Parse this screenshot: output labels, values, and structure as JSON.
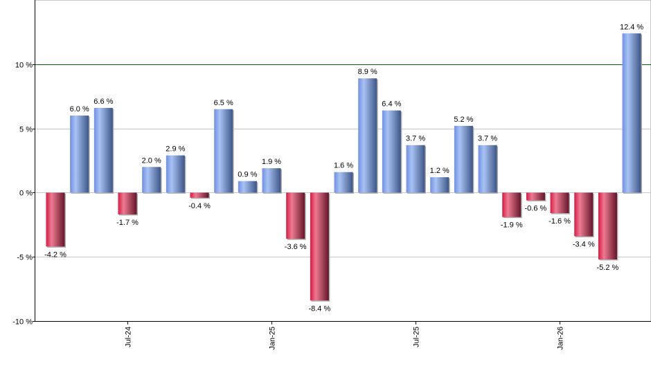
{
  "chart_data": {
    "type": "bar",
    "title": "",
    "xlabel": "",
    "ylabel": "",
    "ylim": [
      -10,
      15
    ],
    "yticks": [
      -10,
      -5,
      0,
      5,
      10
    ],
    "ytick_suffix": " %",
    "grid": true,
    "highlight_line": {
      "value": 10,
      "color": "#006400"
    },
    "categories": [
      "Apr-24",
      "May-24",
      "Jun-24",
      "Jul-24",
      "Aug-24",
      "Sep-24",
      "Oct-24",
      "Nov-24",
      "Dec-24",
      "Jan-25",
      "Feb-25",
      "Mar-25",
      "Apr-25",
      "May-25",
      "Jun-25",
      "Jul-25",
      "Aug-25",
      "Sep-25",
      "Oct-25",
      "Nov-25",
      "Dec-25",
      "Jan-26",
      "Feb-26",
      "Mar-26",
      "Apr-26"
    ],
    "xtick_labels": [
      "Jul-24",
      "Jan-25",
      "Jul-25",
      "Jan-26"
    ],
    "values": [
      -4.2,
      6.0,
      6.6,
      -1.7,
      2.0,
      2.9,
      -0.4,
      6.5,
      0.9,
      1.9,
      -3.6,
      -8.4,
      1.6,
      8.9,
      6.4,
      3.7,
      1.2,
      5.2,
      3.7,
      -1.9,
      -0.6,
      -1.6,
      -3.4,
      -5.2,
      12.4
    ],
    "data_labels": [
      "-4.2 %",
      "6.0 %",
      "6.6 %",
      "-1.7 %",
      "2.0 %",
      "2.9 %",
      "-0.4 %",
      "6.5 %",
      "0.9 %",
      "1.9 %",
      "-3.6 %",
      "-8.4 %",
      "1.6 %",
      "8.9 %",
      "6.4 %",
      "3.7 %",
      "1.2 %",
      "5.2 %",
      "3.7 %",
      "-1.9 %",
      "-0.6 %",
      "-1.6 %",
      "-3.4 %",
      "-5.2 %",
      "12.4 %"
    ],
    "colors": {
      "positive": "#7f9fe6",
      "negative": "#d42a4e",
      "grid": "#c8c8c8",
      "axis": "#000000"
    }
  }
}
